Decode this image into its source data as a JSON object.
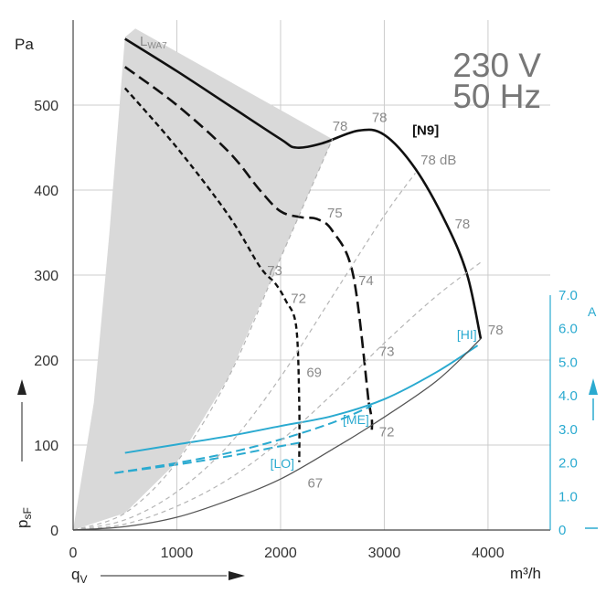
{
  "chart_data": {
    "type": "line",
    "title_lines": [
      "230 V",
      "50 Hz"
    ],
    "ylabel": "Pa",
    "ylabel_bottom_main": "p",
    "ylabel_bottom_sub": "sF",
    "xlabel_main": "q",
    "xlabel_sub": "V",
    "xunit": "m³/h",
    "y2unit": "A",
    "lwa_main": "L",
    "lwa_sub": "WA7",
    "xlim": [
      0,
      4600
    ],
    "ylim": [
      0,
      600
    ],
    "y2lim": [
      0,
      7.0
    ],
    "x_ticks": [
      "0",
      "1000",
      "2000",
      "3000",
      "4000"
    ],
    "y_ticks": [
      "0",
      "100",
      "200",
      "300",
      "400",
      "500"
    ],
    "y2_ticks": [
      "0",
      "1.0",
      "2.0",
      "3.0",
      "4.0",
      "5.0",
      "6.0",
      "7.0"
    ],
    "grid": true,
    "colors": {
      "pressure": "#111111",
      "current": "#2aaad0",
      "system": "#bbbbbb",
      "shade": "#d9d9d9"
    },
    "series": [
      {
        "name": "[N9]",
        "style": "solid",
        "axis": "left",
        "x": [
          500,
          1000,
          1500,
          2000,
          2150,
          2400,
          2750,
          3000,
          3300,
          3600,
          3800,
          3930
        ],
        "y": [
          578,
          540,
          500,
          460,
          450,
          455,
          470,
          465,
          425,
          360,
          300,
          225
        ]
      },
      {
        "name": "[HI]",
        "style": "dash-long",
        "axis": "left",
        "x": [
          500,
          1000,
          1500,
          1800,
          2000,
          2200,
          2350,
          2500,
          2700,
          2850
        ],
        "y": [
          545,
          500,
          445,
          400,
          375,
          368,
          366,
          352,
          300,
          150
        ]
      },
      {
        "name": "[ME]",
        "style": "dash-long",
        "axis": "left",
        "x": [
          2850,
          2880,
          2880
        ],
        "y": [
          150,
          130,
          118
        ]
      },
      {
        "name": "[LO]",
        "style": "dash",
        "axis": "left",
        "x": [
          500,
          1000,
          1500,
          1800,
          1950,
          2050,
          2150,
          2180,
          2180
        ],
        "y": [
          520,
          450,
          370,
          310,
          290,
          270,
          240,
          150,
          80
        ]
      },
      {
        "name": "current-HI",
        "style": "solid-blue",
        "axis": "right",
        "x": [
          500,
          1000,
          1500,
          2000,
          2500,
          3000,
          3500,
          3900
        ],
        "y": [
          2.3,
          2.55,
          2.8,
          3.1,
          3.4,
          3.9,
          4.7,
          5.5
        ]
      },
      {
        "name": "current-ME",
        "style": "dash-blue",
        "axis": "right",
        "x": [
          400,
          1000,
          1500,
          2000,
          2500,
          2880
        ],
        "y": [
          1.7,
          2.0,
          2.3,
          2.7,
          3.2,
          3.7
        ]
      },
      {
        "name": "current-LO",
        "style": "dash-blue",
        "axis": "right",
        "x": [
          400,
          1000,
          1500,
          2000,
          2180
        ],
        "y": [
          1.7,
          1.95,
          2.2,
          2.5,
          2.6
        ]
      },
      {
        "name": "system-1",
        "style": "thin-dash-gray",
        "axis": "left",
        "x": [
          0,
          500,
          1000,
          1500,
          2000,
          2500
        ],
        "y": [
          0,
          20,
          80,
          180,
          320,
          460
        ]
      },
      {
        "name": "system-2",
        "style": "thin-dash-gray",
        "axis": "left",
        "x": [
          0,
          500,
          1000,
          1500,
          2000,
          2500,
          3000,
          3300
        ],
        "y": [
          0,
          12,
          45,
          100,
          180,
          275,
          370,
          420
        ]
      },
      {
        "name": "system-3",
        "style": "thin-dash-gray",
        "axis": "left",
        "x": [
          0,
          500,
          1000,
          1500,
          2000,
          2500,
          3000,
          3500,
          3930
        ],
        "y": [
          0,
          7,
          28,
          60,
          105,
          160,
          220,
          275,
          315
        ]
      },
      {
        "name": "system-4",
        "style": "thin-solid-gray",
        "axis": "left",
        "x": [
          0,
          500,
          1000,
          1500,
          2000,
          2500,
          2900,
          3500,
          3930
        ],
        "y": [
          0,
          4,
          15,
          35,
          60,
          95,
          125,
          175,
          225
        ]
      }
    ],
    "shaded_region": {
      "upper": {
        "x": [
          0,
          200,
          350,
          500,
          600
        ],
        "y": [
          0,
          150,
          350,
          580,
          590
        ]
      },
      "lower": {
        "x": [
          0,
          500,
          1000,
          1500,
          2000,
          2500
        ],
        "y": [
          0,
          20,
          80,
          180,
          320,
          460
        ]
      }
    },
    "annotations": [
      {
        "text": "78",
        "x": 2500,
        "y": 470,
        "color": "gray"
      },
      {
        "text": "78",
        "x": 2880,
        "y": 480,
        "color": "gray"
      },
      {
        "text": "[N9]",
        "x": 3270,
        "y": 465,
        "color": "black"
      },
      {
        "text": "78 dB",
        "x": 3350,
        "y": 430,
        "color": "gray"
      },
      {
        "text": "78",
        "x": 3680,
        "y": 355,
        "color": "gray"
      },
      {
        "text": "75",
        "x": 2450,
        "y": 368,
        "color": "gray"
      },
      {
        "text": "73",
        "x": 1870,
        "y": 300,
        "color": "gray"
      },
      {
        "text": "74",
        "x": 2750,
        "y": 288,
        "color": "gray"
      },
      {
        "text": "72",
        "x": 2100,
        "y": 267,
        "color": "gray"
      },
      {
        "text": "73",
        "x": 2950,
        "y": 205,
        "color": "gray"
      },
      {
        "text": "69",
        "x": 2250,
        "y": 180,
        "color": "gray"
      },
      {
        "text": "72",
        "x": 2950,
        "y": 110,
        "color": "gray"
      },
      {
        "text": "67",
        "x": 2260,
        "y": 50,
        "color": "gray"
      },
      {
        "text": "78",
        "x": 4000,
        "y": 230,
        "color": "gray"
      },
      {
        "text": "[HI]",
        "x": 3700,
        "y": 225,
        "color": "blue"
      },
      {
        "text": "[ME]",
        "x": 2600,
        "y": 125,
        "color": "blue"
      },
      {
        "text": "[LO]",
        "x": 1900,
        "y": 73,
        "color": "blue"
      }
    ]
  }
}
